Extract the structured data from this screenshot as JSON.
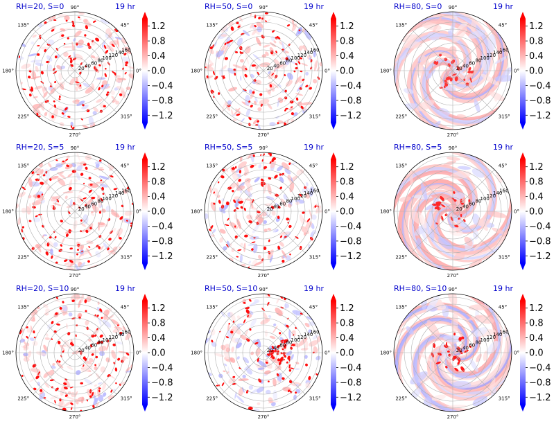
{
  "figure": {
    "colors": {
      "accent_text": "#0000cc",
      "positive": "#ff0000",
      "negative": "#0000ff",
      "zero": "#ffffff",
      "grid": "#b0b0b0"
    }
  },
  "chart_data": [
    {
      "type": "heatmap",
      "projection": "polar",
      "title": "RH=20, S=0",
      "time_label": "19 hr",
      "angle_ticks": [
        "90°",
        "135°",
        "180°",
        "225°",
        "270°",
        "315°",
        "0°",
        "45°"
      ],
      "radial_ticks": [
        "20",
        "40",
        "60",
        "80",
        "100",
        "120",
        "140",
        "160"
      ],
      "rlim": [
        0,
        170
      ],
      "grid": true,
      "colorbar": {
        "ticks": [
          "1.2",
          "0.8",
          "0.4",
          "0.0",
          "−0.4",
          "−0.8",
          "−1.2"
        ],
        "range": [
          -1.4,
          1.4
        ],
        "extend": "both",
        "colormap": "bwr"
      },
      "field": {
        "character": "scattered cells",
        "positive_intensity": 0.95,
        "negative_intensity": 0.25,
        "swirl": 0.0
      }
    },
    {
      "type": "heatmap",
      "projection": "polar",
      "title": "RH=50, S=0",
      "time_label": "19 hr",
      "angle_ticks": [
        "90°",
        "135°",
        "180°",
        "225°",
        "270°",
        "315°",
        "0°",
        "45°"
      ],
      "radial_ticks": [
        "20",
        "40",
        "60",
        "80",
        "100",
        "120",
        "140",
        "160"
      ],
      "rlim": [
        0,
        170
      ],
      "grid": true,
      "colorbar": {
        "ticks": [
          "1.2",
          "0.8",
          "0.4",
          "0.0",
          "−0.4",
          "−0.8",
          "−1.2"
        ],
        "range": [
          -1.4,
          1.4
        ],
        "extend": "both",
        "colormap": "bwr"
      },
      "field": {
        "character": "scattered cells with arcs",
        "positive_intensity": 0.95,
        "negative_intensity": 0.45,
        "swirl": 0.2
      }
    },
    {
      "type": "heatmap",
      "projection": "polar",
      "title": "RH=80, S=0",
      "time_label": "19 hr",
      "angle_ticks": [
        "90°",
        "135°",
        "180°",
        "225°",
        "270°",
        "315°",
        "0°",
        "45°"
      ],
      "radial_ticks": [
        "20",
        "40",
        "60",
        "80",
        "100",
        "120",
        "140",
        "160"
      ],
      "rlim": [
        0,
        170
      ],
      "grid": true,
      "colorbar": {
        "ticks": [
          "1.2",
          "0.8",
          "0.4",
          "0.0",
          "−0.4",
          "−0.8",
          "−1.2"
        ],
        "range": [
          -1.4,
          1.4
        ],
        "extend": "both",
        "colormap": "bwr"
      },
      "field": {
        "character": "spiral bands",
        "positive_intensity": 0.8,
        "negative_intensity": 0.4,
        "swirl": 1.0
      }
    },
    {
      "type": "heatmap",
      "projection": "polar",
      "title": "RH=20, S=5",
      "time_label": "19 hr",
      "angle_ticks": [
        "90°",
        "135°",
        "180°",
        "225°",
        "270°",
        "315°",
        "0°",
        "45°"
      ],
      "radial_ticks": [
        "20",
        "40",
        "60",
        "80",
        "100",
        "120",
        "140",
        "160"
      ],
      "rlim": [
        0,
        170
      ],
      "grid": true,
      "colorbar": {
        "ticks": [
          "1.2",
          "0.8",
          "0.4",
          "0.0",
          "−0.4",
          "−0.8",
          "−1.2"
        ],
        "range": [
          -1.4,
          1.4
        ],
        "extend": "both",
        "colormap": "bwr"
      },
      "field": {
        "character": "scattered cells",
        "positive_intensity": 0.95,
        "negative_intensity": 0.25,
        "swirl": 0.0
      }
    },
    {
      "type": "heatmap",
      "projection": "polar",
      "title": "RH=50, S=5",
      "time_label": "19 hr",
      "angle_ticks": [
        "90°",
        "135°",
        "180°",
        "225°",
        "270°",
        "315°",
        "0°",
        "45°"
      ],
      "radial_ticks": [
        "20",
        "40",
        "60",
        "80",
        "100",
        "120",
        "140",
        "160"
      ],
      "rlim": [
        0,
        170
      ],
      "grid": true,
      "colorbar": {
        "ticks": [
          "1.2",
          "0.8",
          "0.4",
          "0.0",
          "−0.4",
          "−0.8",
          "−1.2"
        ],
        "range": [
          -1.4,
          1.4
        ],
        "extend": "both",
        "colormap": "bwr"
      },
      "field": {
        "character": "scattered cells, denser downshear",
        "positive_intensity": 0.95,
        "negative_intensity": 0.5,
        "swirl": 0.2
      }
    },
    {
      "type": "heatmap",
      "projection": "polar",
      "title": "RH=80, S=5",
      "time_label": "19 hr",
      "angle_ticks": [
        "90°",
        "135°",
        "180°",
        "225°",
        "270°",
        "315°",
        "0°",
        "45°"
      ],
      "radial_ticks": [
        "20",
        "40",
        "60",
        "80",
        "100",
        "120",
        "140",
        "160"
      ],
      "rlim": [
        0,
        170
      ],
      "grid": true,
      "colorbar": {
        "ticks": [
          "1.2",
          "0.8",
          "0.4",
          "0.0",
          "−0.4",
          "−0.8",
          "−1.2"
        ],
        "range": [
          -1.4,
          1.4
        ],
        "extend": "both",
        "colormap": "bwr"
      },
      "field": {
        "character": "spiral bands",
        "positive_intensity": 0.85,
        "negative_intensity": 0.35,
        "swirl": 1.0
      }
    },
    {
      "type": "heatmap",
      "projection": "polar",
      "title": "RH=20, S=10",
      "time_label": "19 hr",
      "angle_ticks": [
        "90°",
        "135°",
        "180°",
        "225°",
        "270°",
        "315°",
        "0°",
        "45°"
      ],
      "radial_ticks": [
        "20",
        "40",
        "60",
        "80",
        "100",
        "120",
        "140",
        "160"
      ],
      "rlim": [
        0,
        170
      ],
      "grid": true,
      "colorbar": {
        "ticks": [
          "1.2",
          "0.8",
          "0.4",
          "0.0",
          "−0.4",
          "−0.8",
          "−1.2"
        ],
        "range": [
          -1.4,
          1.4
        ],
        "extend": "both",
        "colormap": "bwr"
      },
      "field": {
        "character": "scattered cells",
        "positive_intensity": 0.95,
        "negative_intensity": 0.25,
        "swirl": 0.1
      }
    },
    {
      "type": "heatmap",
      "projection": "polar",
      "title": "RH=50, S=10",
      "time_label": "19 hr",
      "angle_ticks": [
        "90°",
        "135°",
        "180°",
        "225°",
        "270°",
        "315°",
        "0°",
        "45°"
      ],
      "radial_ticks": [
        "20",
        "40",
        "60",
        "80",
        "100",
        "120",
        "140",
        "160"
      ],
      "rlim": [
        0,
        170
      ],
      "grid": true,
      "colorbar": {
        "ticks": [
          "1.2",
          "0.8",
          "0.4",
          "0.0",
          "−0.4",
          "−0.8",
          "−1.2"
        ],
        "range": [
          -1.4,
          1.4
        ],
        "extend": "both",
        "colormap": "bwr"
      },
      "field": {
        "character": "cells concentrated east of center",
        "positive_intensity": 0.95,
        "negative_intensity": 0.5,
        "swirl": 0.3
      }
    },
    {
      "type": "heatmap",
      "projection": "polar",
      "title": "RH=80, S=10",
      "time_label": "19 hr",
      "angle_ticks": [
        "90°",
        "135°",
        "180°",
        "225°",
        "270°",
        "315°",
        "0°",
        "45°"
      ],
      "radial_ticks": [
        "20",
        "40",
        "60",
        "80",
        "100",
        "120",
        "140",
        "160"
      ],
      "rlim": [
        0,
        170
      ],
      "grid": true,
      "colorbar": {
        "ticks": [
          "1.2",
          "0.8",
          "0.4",
          "0.0",
          "−0.4",
          "−0.8",
          "−1.2"
        ],
        "range": [
          -1.4,
          1.4
        ],
        "extend": "both",
        "colormap": "bwr"
      },
      "field": {
        "character": "spiral bands with core",
        "positive_intensity": 0.9,
        "negative_intensity": 0.4,
        "swirl": 1.0
      }
    }
  ]
}
